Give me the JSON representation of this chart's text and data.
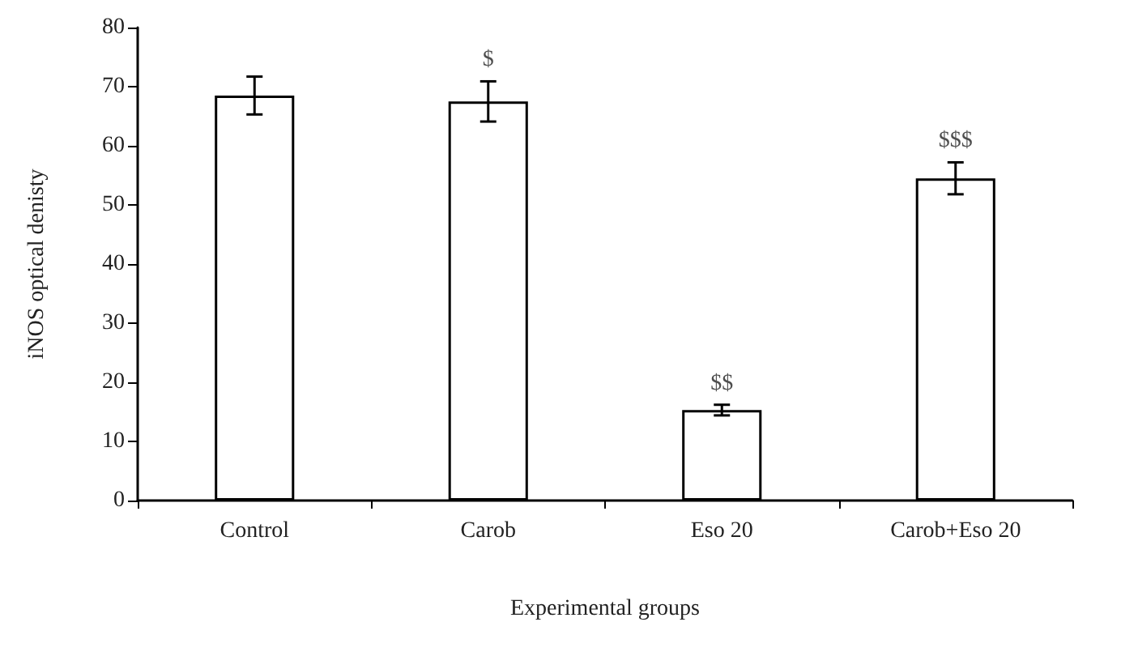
{
  "chart_data": {
    "type": "bar",
    "xlabel": "Experimental groups",
    "ylabel": "iNOS optical denisty",
    "categories": [
      "Control",
      "Carob",
      "Eso 20",
      "Carob+Eso 20"
    ],
    "values": [
      68.5,
      67.5,
      15.3,
      54.5
    ],
    "errors": [
      3.2,
      3.4,
      0.9,
      2.7
    ],
    "value_labels": [
      null,
      "$",
      "$$",
      "$$$"
    ],
    "color": "#ffffff",
    "ylim": [
      0,
      80
    ],
    "yticks": [
      0,
      10,
      20,
      30,
      40,
      50,
      60,
      70,
      80
    ],
    "grid": false
  }
}
